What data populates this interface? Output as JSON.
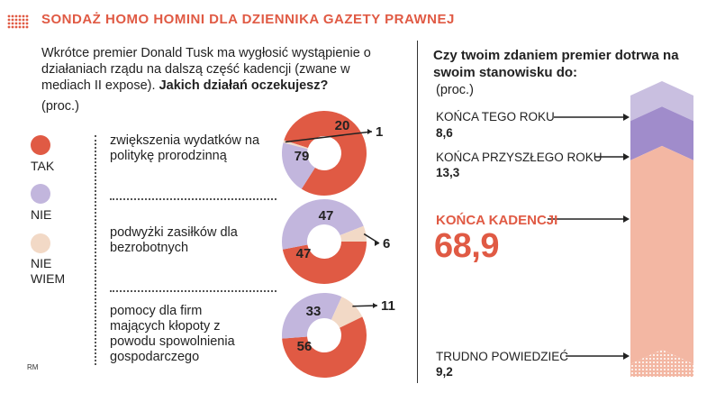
{
  "header": {
    "title": "SONDAŻ HOMO HOMINI DLA DZIENNIKA GAZETY PRAWNEJ"
  },
  "left": {
    "question_part1": "Wkrótce premier Donald Tusk ma wygłosić wystąpienie o działaniach rządu na dalszą część kadencji (zwane w mediach II expose). ",
    "question_bold": "Jakich działań oczekujesz?",
    "unit": "(proc.)",
    "legend": [
      {
        "label": "TAK",
        "color": "#e05a44"
      },
      {
        "label": "NIE",
        "color": "#c2b6dd"
      },
      {
        "label": "NIE WIEM",
        "color": "#f2d9c6"
      }
    ],
    "credit": "RM"
  },
  "chart_data": [
    {
      "type": "pie",
      "categories": [
        "TAK",
        "NIE",
        "NIE WIEM"
      ],
      "groups": [
        {
          "label": "zwiększenia wydatków na politykę prorodzinną",
          "values": [
            79,
            20,
            1
          ]
        },
        {
          "label": "podwyżki zasiłków dla bezrobotnych",
          "values": [
            47,
            47,
            6
          ]
        },
        {
          "label": "pomocy dla firm mających kłopoty z powodu spowolnienia gospodarczego",
          "values": [
            56,
            33,
            11
          ]
        }
      ]
    },
    {
      "type": "bar",
      "title": "Czy twoim zdaniem premier dotrwa na swoim stanowisku do:",
      "unit": "(proc.)",
      "categories": [
        "KOŃCA TEGO ROKU",
        "KOŃCA PRZYSZŁEGO ROKU",
        "KOŃCA KADENCJI",
        "TRUDNO POWIEDZIEĆ"
      ],
      "values": [
        8.6,
        13.3,
        68.9,
        9.2
      ],
      "value_labels": [
        "8,6",
        "13,3",
        "68,9",
        "9,2"
      ]
    }
  ],
  "colors": {
    "accent": "#e05a44",
    "purple_light": "#c9bfe0",
    "purple_dark": "#a08ccb",
    "peach": "#f3b7a3",
    "nie_wiem": "#f2d9c6"
  }
}
